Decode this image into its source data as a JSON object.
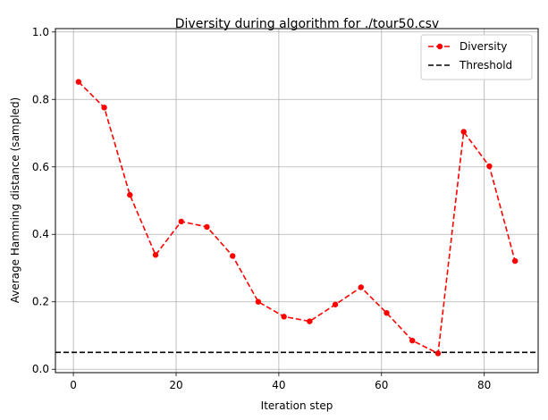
{
  "chart_data": {
    "type": "line",
    "title": "Diversity during algorithm for ./tour50.csv",
    "xlabel": "Iteration step",
    "ylabel": "Average Hamming distance (sampled)",
    "xlim": [
      -3.5,
      90.5
    ],
    "ylim": [
      -0.01,
      1.01
    ],
    "xticks": [
      0,
      20,
      40,
      60,
      80
    ],
    "yticks": [
      0.0,
      0.2,
      0.4,
      0.6,
      0.8,
      1.0
    ],
    "xtick_labels": [
      "0",
      "20",
      "40",
      "60",
      "80"
    ],
    "ytick_labels": [
      "0.0",
      "0.2",
      "0.4",
      "0.6",
      "0.8",
      "1.0"
    ],
    "grid": true,
    "legend_position": "top-right",
    "series": [
      {
        "name": "Diversity",
        "color": "#ff0000",
        "line_style": "dashed",
        "marker": "circle",
        "x": [
          1,
          6,
          11,
          16,
          21,
          26,
          31,
          36,
          41,
          46,
          51,
          56,
          61,
          66,
          71,
          76,
          81,
          86
        ],
        "y": [
          0.852,
          0.776,
          0.517,
          0.339,
          0.438,
          0.422,
          0.336,
          0.2,
          0.156,
          0.142,
          0.192,
          0.243,
          0.167,
          0.085,
          0.047,
          0.704,
          0.602,
          0.321
        ]
      }
    ],
    "reference_lines": [
      {
        "name": "Threshold",
        "orientation": "horizontal",
        "y": 0.05,
        "color": "#000000",
        "line_style": "dashed"
      }
    ]
  }
}
